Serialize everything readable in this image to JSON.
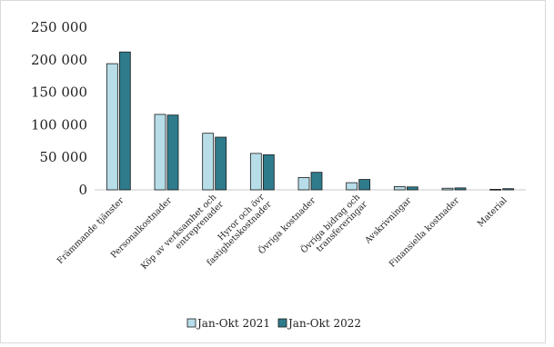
{
  "chart_data": {
    "type": "bar",
    "title": "",
    "xlabel": "",
    "ylabel": "",
    "ylim": [
      0,
      250000
    ],
    "yticks": [
      0,
      50000,
      100000,
      150000,
      200000,
      250000
    ],
    "ytick_labels": [
      "0",
      "50 000",
      "100 000",
      "150 000",
      "200 000",
      "250 000"
    ],
    "grid": false,
    "legend_position": "bottom",
    "categories": [
      [
        "Främmande tjänster"
      ],
      [
        "Personalkostnader"
      ],
      [
        "Köp av verksamhet och",
        "entreprenader"
      ],
      [
        "Hyror och övr",
        "fastighetskostnader"
      ],
      [
        "Övriga kostnader"
      ],
      [
        "Övriga bidrag och",
        "transfereringar"
      ],
      [
        "Avskrivningar"
      ],
      [
        "Finansiella kostnader"
      ],
      [
        "Material"
      ]
    ],
    "series": [
      {
        "name": "Jan-Okt 2021",
        "color": "#b7dde8",
        "values": [
          194000,
          116000,
          87000,
          56000,
          19000,
          11000,
          5000,
          2500,
          800
        ]
      },
      {
        "name": "Jan-Okt 2022",
        "color": "#2e7b8c",
        "values": [
          212000,
          115000,
          81000,
          54000,
          27000,
          16000,
          4500,
          3000,
          1800
        ]
      }
    ]
  }
}
